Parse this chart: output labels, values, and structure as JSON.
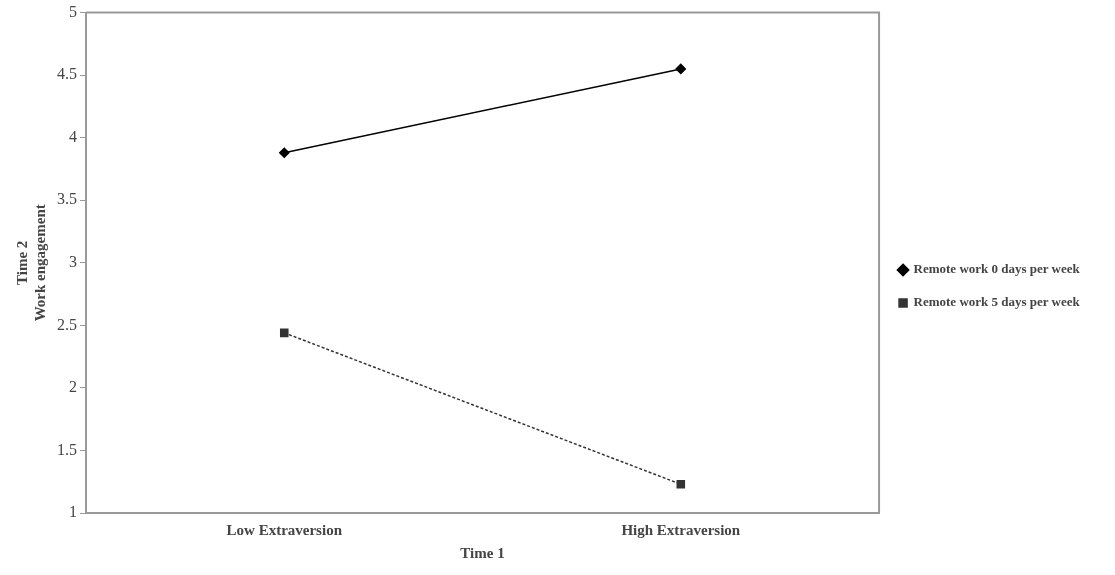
{
  "chart_data": {
    "type": "line",
    "xlabel": "Time 1",
    "ylabel": "Time 2\nWork engagement",
    "categories": [
      "Low Extraversion",
      "High Extraversion"
    ],
    "series": [
      {
        "name": "Remote work 0 days per week",
        "color": "#000000",
        "values": [
          3.88,
          4.55
        ],
        "marker": "diamond",
        "line_style": "solid"
      },
      {
        "name": "Remote work 5 days per week",
        "color": "#333333",
        "values": [
          2.44,
          1.23
        ],
        "marker": "square",
        "line_style": "dotted"
      }
    ],
    "ylim": [
      1,
      5
    ],
    "yticks": [
      1,
      1.5,
      2,
      2.5,
      3,
      3.5,
      4,
      4.5,
      5
    ],
    "grid": false,
    "legend": "right"
  }
}
